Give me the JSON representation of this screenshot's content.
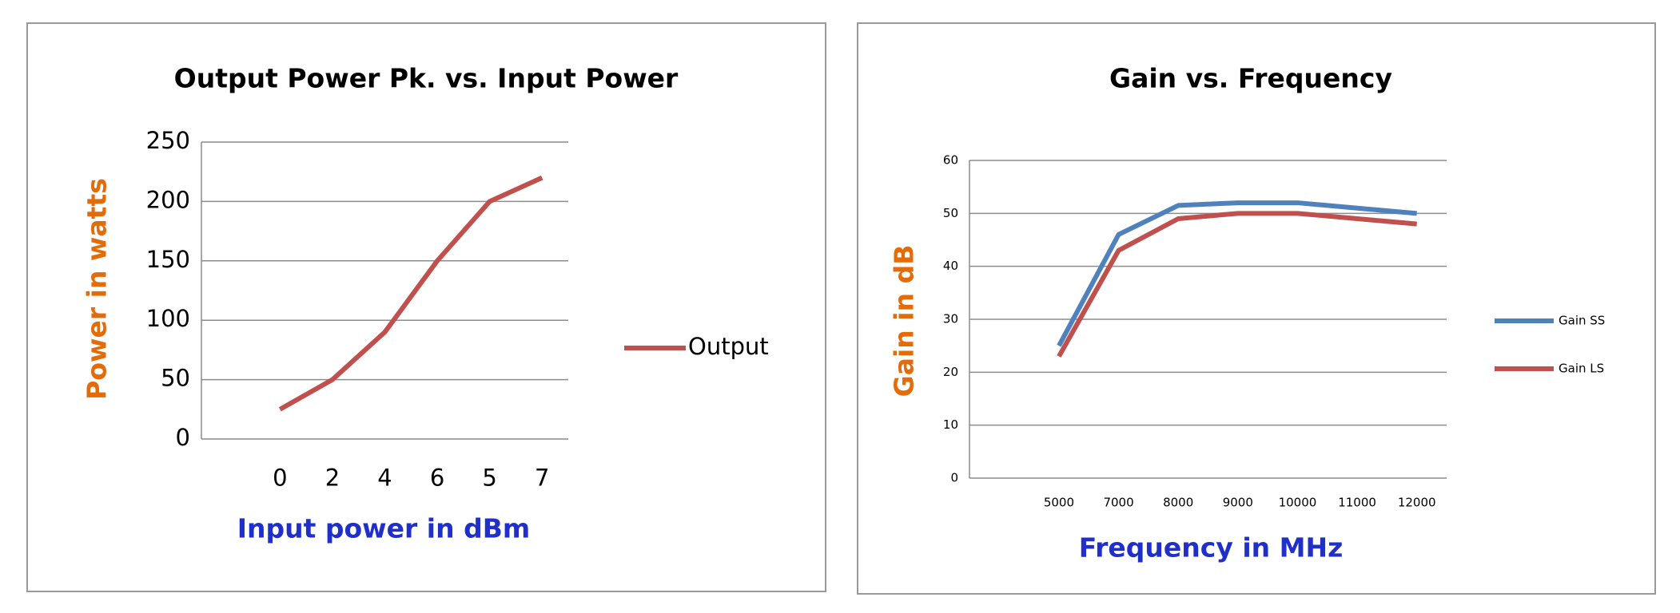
{
  "chart_data": [
    {
      "type": "line",
      "title": "Output Power Pk. vs. Input Power",
      "xlabel": "Input power in dBm",
      "ylabel": "Power in watts",
      "categories": [
        null,
        "0",
        "2",
        "4",
        "6",
        "5",
        "7"
      ],
      "series": [
        {
          "name": "Output",
          "color": "#c0504d",
          "values": [
            null,
            25,
            50,
            90,
            150,
            200,
            220
          ]
        }
      ],
      "ylim": [
        0,
        250
      ],
      "yticks": [
        0,
        50,
        100,
        150,
        200,
        250
      ],
      "grid": true,
      "legend": "right"
    },
    {
      "type": "line",
      "title": "Gain vs. Frequency",
      "xlabel": "Frequency in MHz",
      "ylabel": "Gain in dB",
      "categories": [
        null,
        "5000",
        "7000",
        "8000",
        "9000",
        "10000",
        "11000",
        "12000"
      ],
      "series": [
        {
          "name": "Gain SS",
          "color": "#4f81bd",
          "values": [
            null,
            25,
            46,
            51.5,
            52,
            52,
            51,
            50
          ]
        },
        {
          "name": "Gain LS",
          "color": "#c0504d",
          "values": [
            null,
            23,
            43,
            49,
            50,
            50,
            49,
            48
          ]
        }
      ],
      "ylim": [
        0,
        60
      ],
      "yticks": [
        0,
        10,
        20,
        30,
        40,
        50,
        60
      ],
      "grid": true,
      "legend": "right"
    }
  ]
}
